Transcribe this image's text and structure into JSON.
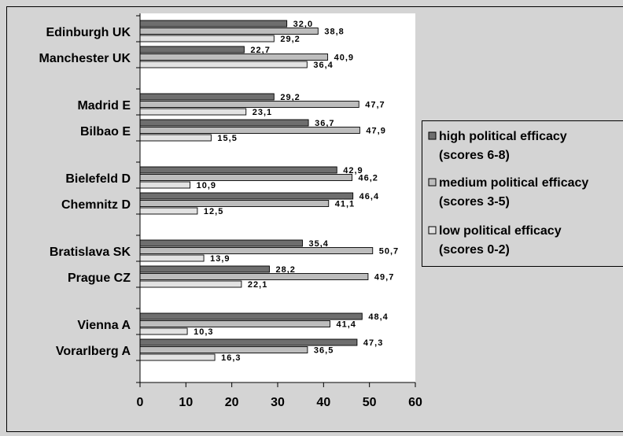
{
  "chart_data": {
    "type": "bar",
    "orientation": "horizontal",
    "categories": [
      "Edinburgh UK",
      "Manchester UK",
      "Madrid E",
      "Bilbao E",
      "Bielefeld D",
      "Chemnitz D",
      "Bratislava SK",
      "Prague CZ",
      "Vienna A",
      "Vorarlberg A"
    ],
    "series": [
      {
        "name": "high political efficacy (scores 6-8)",
        "values": [
          32.0,
          22.7,
          29.2,
          36.7,
          42.9,
          46.4,
          35.4,
          28.2,
          48.4,
          47.3
        ],
        "labels": [
          "32,0",
          "22,7",
          "29,2",
          "36,7",
          "42,9",
          "46,4",
          "35,4",
          "28,2",
          "48,4",
          "47,3"
        ],
        "color": "#6e6e6e"
      },
      {
        "name": "medium political efficacy (scores 3-5)",
        "values": [
          38.8,
          40.9,
          47.7,
          47.9,
          46.2,
          41.1,
          50.7,
          49.7,
          41.4,
          36.5
        ],
        "labels": [
          "38,8",
          "40,9",
          "47,7",
          "47,9",
          "46,2",
          "41,1",
          "50,7",
          "49,7",
          "41,4",
          "36,5"
        ],
        "color": "#bdbdbd"
      },
      {
        "name": "low political efficacy (scores 0-2)",
        "values": [
          29.2,
          36.4,
          23.1,
          15.5,
          10.9,
          12.5,
          13.9,
          22.1,
          10.3,
          16.3
        ],
        "labels": [
          "29,2",
          "36,4",
          "23,1",
          "15,5",
          "10,9",
          "12,5",
          "13,9",
          "22,1",
          "10,3",
          "16,3"
        ],
        "color": "#e2e2e2"
      }
    ],
    "xlim": [
      0,
      60
    ],
    "x_ticks": [
      "0",
      "10",
      "20",
      "30",
      "40",
      "50",
      "60"
    ],
    "legend": [
      {
        "line1": "high political efficacy",
        "line2": "(scores 6-8)"
      },
      {
        "line1": "medium political efficacy",
        "line2": "(scores 3-5)"
      },
      {
        "line1": "low political efficacy",
        "line2": "(scores 0-2)"
      }
    ],
    "legend_position": "right",
    "grid": false,
    "colors": {
      "page_background": "#d4d4d4",
      "plot_background": "#ffffff",
      "axis": "#000000"
    }
  }
}
